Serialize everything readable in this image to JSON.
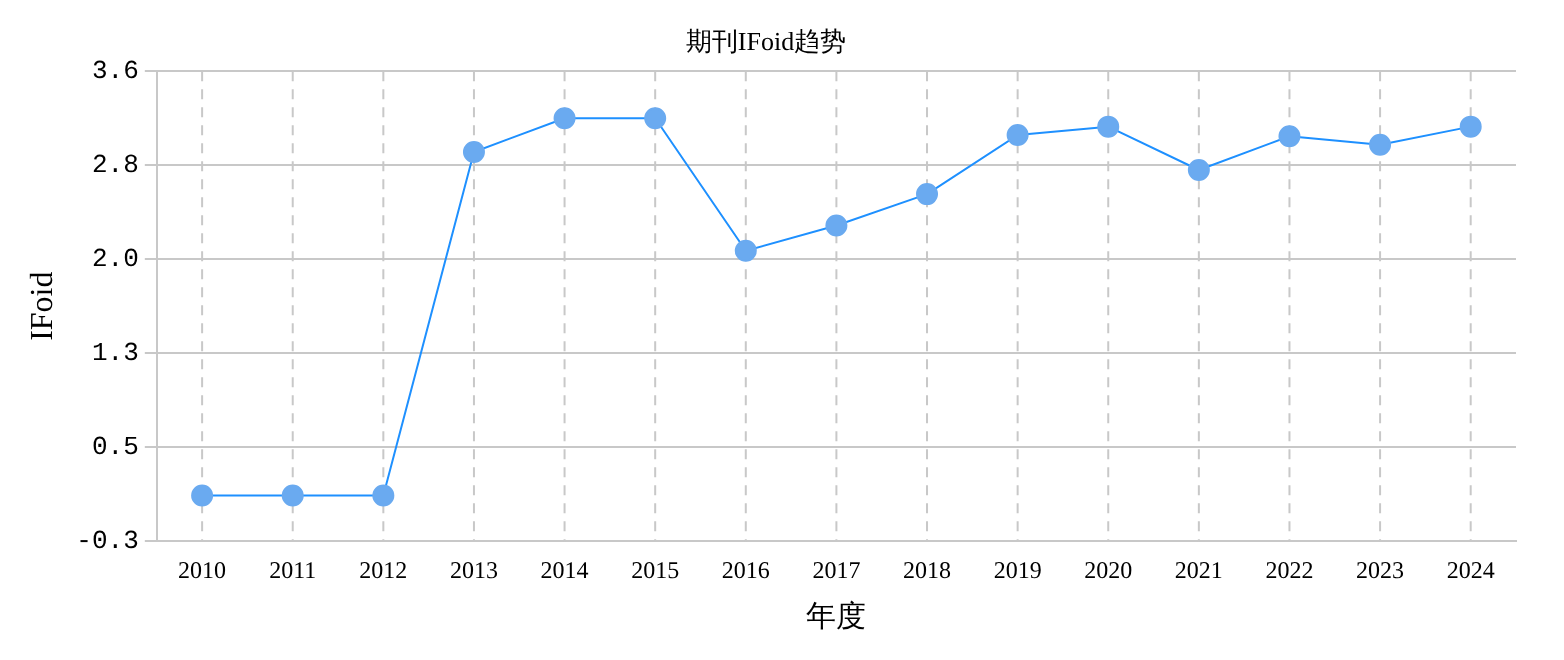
{
  "chart_data": {
    "type": "line",
    "title": "期刊IFoid趋势",
    "xlabel": "年度",
    "ylabel": "IFoid",
    "categories": [
      "2010",
      "2011",
      "2012",
      "2013",
      "2014",
      "2015",
      "2016",
      "2017",
      "2018",
      "2019",
      "2020",
      "2021",
      "2022",
      "2023",
      "2024"
    ],
    "series": [
      {
        "color": "#1e90ff",
        "values": [
          0.08,
          0.08,
          0.08,
          2.93,
          3.21,
          3.21,
          2.11,
          2.32,
          2.58,
          3.07,
          3.14,
          2.78,
          3.06,
          2.99,
          3.14
        ]
      }
    ],
    "ylim": [
      -0.3,
      3.6
    ],
    "yticks": [
      -0.3,
      {
        "value": 0.48,
        "label": "0.5"
      },
      {
        "value": 1.26,
        "label": "1.3"
      },
      {
        "value": 2.04,
        "label": "2.0"
      },
      {
        "value": 2.82,
        "label": "2.8"
      },
      3.6
    ],
    "grid": true,
    "legend": false,
    "marker": "circle",
    "line_style": "solid"
  }
}
